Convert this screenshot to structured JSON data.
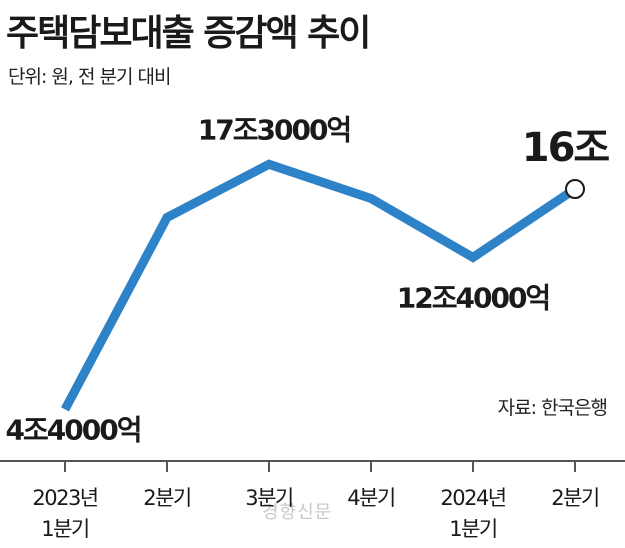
{
  "title": "주택담보대출 증감액 추이",
  "subtitle": "단위: 원, 전 분기 대비",
  "source": "자료: 한국은행",
  "watermark": "경향신문",
  "colors": {
    "line": "#2e82c8",
    "text": "#1a1a1a",
    "axis": "#555555"
  },
  "chart_data": {
    "type": "line",
    "categories": [
      [
        "2023년",
        "1분기"
      ],
      [
        "2분기"
      ],
      [
        "3분기"
      ],
      [
        "4분기"
      ],
      [
        "2024년",
        "1분기"
      ],
      [
        "2분기"
      ]
    ],
    "series": [
      {
        "values": [
          4.4,
          14.5,
          17.3,
          15.5,
          12.4,
          16
        ]
      }
    ],
    "data_labels": [
      "4조4000억",
      "",
      "17조3000억",
      "",
      "12조4000억",
      "16조"
    ],
    "unit": "조 원",
    "ylim": [
      2,
      22
    ],
    "grid": false,
    "last_point_marker": "open-circle"
  }
}
